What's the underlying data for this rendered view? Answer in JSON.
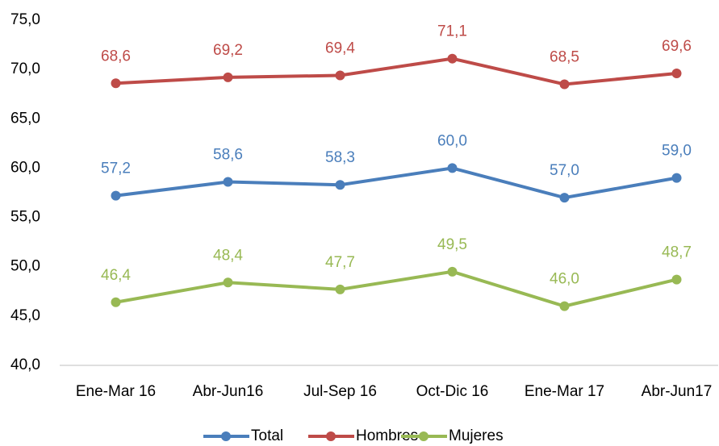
{
  "chart_data": {
    "type": "line",
    "categories": [
      "Ene-Mar 16",
      "Abr-Jun16",
      "Jul-Sep 16",
      "Oct-Dic 16",
      "Ene-Mar 17",
      "Abr-Jun17"
    ],
    "series": [
      {
        "name": "Total",
        "color": "#4a7ebb",
        "values": [
          57.2,
          58.6,
          58.3,
          60.0,
          57.0,
          59.0
        ],
        "value_labels": [
          "57,2",
          "58,6",
          "58,3",
          "60,0",
          "57,0",
          "59,0"
        ]
      },
      {
        "name": "Hombres",
        "color": "#be4b48",
        "values": [
          68.6,
          69.2,
          69.4,
          71.1,
          68.5,
          69.6
        ],
        "value_labels": [
          "68,6",
          "69,2",
          "69,4",
          "71,1",
          "68,5",
          "69,6"
        ]
      },
      {
        "name": "Mujeres",
        "color": "#98b954",
        "values": [
          46.4,
          48.4,
          47.7,
          49.5,
          46.0,
          48.7
        ],
        "value_labels": [
          "46,4",
          "48,4",
          "47,7",
          "49,5",
          "46,0",
          "48,7"
        ]
      }
    ],
    "ylim": [
      40,
      75
    ],
    "yticks": [
      {
        "value": 40,
        "label": "40,0"
      },
      {
        "value": 45,
        "label": "45,0"
      },
      {
        "value": 50,
        "label": "50,0"
      },
      {
        "value": 55,
        "label": "55,0"
      },
      {
        "value": 60,
        "label": "60,0"
      },
      {
        "value": 65,
        "label": "65,0"
      },
      {
        "value": 70,
        "label": "70,0"
      },
      {
        "value": 75,
        "label": "75,0"
      }
    ],
    "grid": false,
    "legend": "bottom"
  }
}
